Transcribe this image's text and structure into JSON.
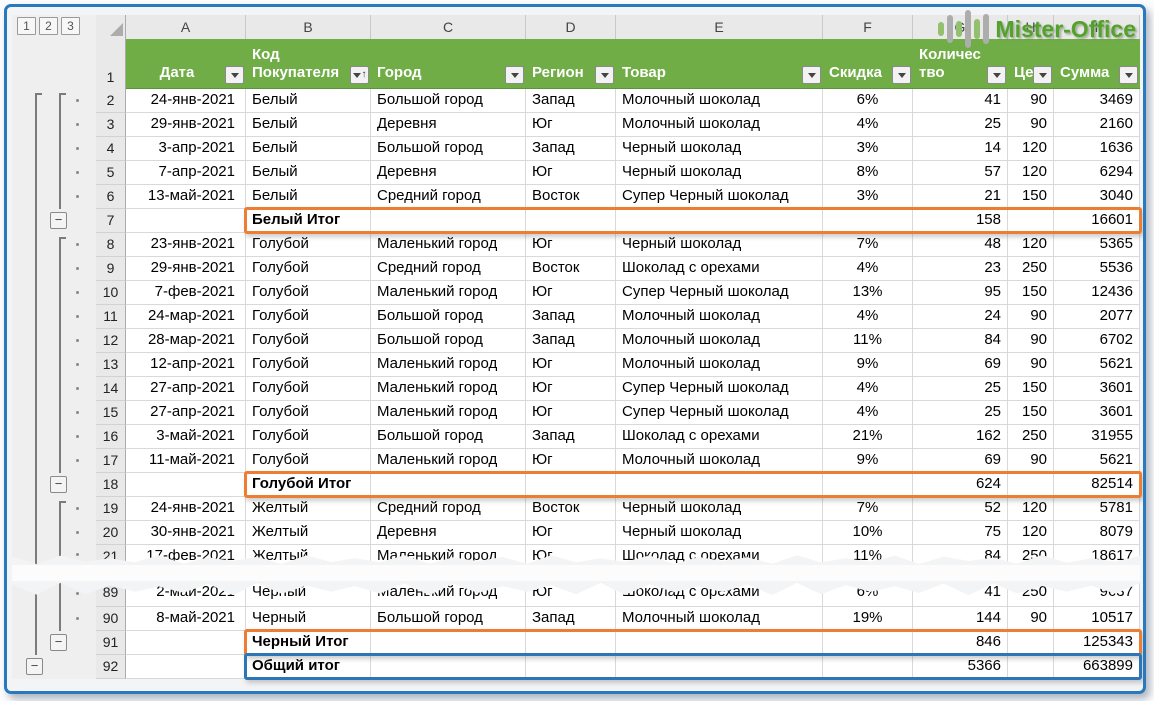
{
  "app": {
    "logo_text": "Mister-Office"
  },
  "outline": {
    "level_buttons": [
      "1",
      "2",
      "3"
    ]
  },
  "header_row_num": "1",
  "colors": {
    "table_header_green": "#70AD47",
    "subtotal_border_orange": "#ED7D31",
    "grandtotal_border_blue": "#2E75B6",
    "frame_border_blue": "#2879BE",
    "logo_green": "#55A02E"
  },
  "columns": {
    "letters": [
      "A",
      "B",
      "C",
      "D",
      "E",
      "F",
      "G",
      "H",
      "I"
    ],
    "headers": [
      {
        "label": "Дата",
        "filter": "dropdown"
      },
      {
        "label": "Код Покупателя",
        "filter": "dropdown-sort-asc"
      },
      {
        "label": "Город",
        "filter": "dropdown"
      },
      {
        "label": "Регион",
        "filter": "dropdown"
      },
      {
        "label": "Товар",
        "filter": "dropdown"
      },
      {
        "label": "Скидка",
        "filter": "dropdown"
      },
      {
        "label": "Количество",
        "filter": "dropdown",
        "wrap": true
      },
      {
        "label": "Цена",
        "filter": "dropdown"
      },
      {
        "label": "Сумма",
        "filter": "dropdown"
      }
    ]
  },
  "rows": [
    {
      "n": "2",
      "date": "24-янв-2021",
      "customer": "Белый",
      "city": "Большой город",
      "region": "Запад",
      "product": "Молочный шоколад",
      "discount": "6%",
      "qty": "41",
      "price": "90",
      "sum": "3469",
      "g": {
        "l1": "corner",
        "l2": "corner",
        "dot": true
      }
    },
    {
      "n": "3",
      "date": "29-янв-2021",
      "customer": "Белый",
      "city": "Деревня",
      "region": "Юг",
      "product": "Молочный шоколад",
      "discount": "4%",
      "qty": "25",
      "price": "90",
      "sum": "2160",
      "g": {
        "l1": "line",
        "l2": "line",
        "dot": true
      }
    },
    {
      "n": "4",
      "date": "3-апр-2021",
      "customer": "Белый",
      "city": "Большой город",
      "region": "Запад",
      "product": "Черный шоколад",
      "discount": "3%",
      "qty": "14",
      "price": "120",
      "sum": "1636",
      "g": {
        "l1": "line",
        "l2": "line",
        "dot": true
      }
    },
    {
      "n": "5",
      "date": "7-апр-2021",
      "customer": "Белый",
      "city": "Деревня",
      "region": "Юг",
      "product": "Черный шоколад",
      "discount": "8%",
      "qty": "57",
      "price": "120",
      "sum": "6294",
      "g": {
        "l1": "line",
        "l2": "line",
        "dot": true
      }
    },
    {
      "n": "6",
      "date": "13-май-2021",
      "customer": "Белый",
      "city": "Средний город",
      "region": "Восток",
      "product": "Супер Черный шоколад",
      "discount": "3%",
      "qty": "21",
      "price": "150",
      "sum": "3040",
      "g": {
        "l1": "line",
        "l2": "line",
        "dot": true
      }
    },
    {
      "n": "7",
      "label": "Белый Итог",
      "qty": "158",
      "sum": "16601",
      "style": "subtotal",
      "g": {
        "l1": "line",
        "l2": "btn"
      }
    },
    {
      "n": "8",
      "date": "23-янв-2021",
      "customer": "Голубой",
      "city": "Маленький город",
      "region": "Юг",
      "product": "Черный шоколад",
      "discount": "7%",
      "qty": "48",
      "price": "120",
      "sum": "5365",
      "g": {
        "l1": "line",
        "l2": "corner",
        "dot": true
      }
    },
    {
      "n": "9",
      "date": "29-янв-2021",
      "customer": "Голубой",
      "city": "Средний город",
      "region": "Восток",
      "product": "Шоколад с орехами",
      "discount": "4%",
      "qty": "23",
      "price": "250",
      "sum": "5536",
      "g": {
        "l1": "line",
        "l2": "line",
        "dot": true
      }
    },
    {
      "n": "10",
      "date": "7-фев-2021",
      "customer": "Голубой",
      "city": "Маленький город",
      "region": "Юг",
      "product": "Супер Черный шоколад",
      "discount": "13%",
      "qty": "95",
      "price": "150",
      "sum": "12436",
      "g": {
        "l1": "line",
        "l2": "line",
        "dot": true
      }
    },
    {
      "n": "11",
      "date": "24-мар-2021",
      "customer": "Голубой",
      "city": "Большой город",
      "region": "Запад",
      "product": "Молочный шоколад",
      "discount": "4%",
      "qty": "24",
      "price": "90",
      "sum": "2077",
      "g": {
        "l1": "line",
        "l2": "line",
        "dot": true
      }
    },
    {
      "n": "12",
      "date": "28-мар-2021",
      "customer": "Голубой",
      "city": "Большой город",
      "region": "Запад",
      "product": "Молочный шоколад",
      "discount": "11%",
      "qty": "84",
      "price": "90",
      "sum": "6702",
      "g": {
        "l1": "line",
        "l2": "line",
        "dot": true
      }
    },
    {
      "n": "13",
      "date": "12-апр-2021",
      "customer": "Голубой",
      "city": "Маленький город",
      "region": "Юг",
      "product": "Молочный шоколад",
      "discount": "9%",
      "qty": "69",
      "price": "90",
      "sum": "5621",
      "g": {
        "l1": "line",
        "l2": "line",
        "dot": true
      }
    },
    {
      "n": "14",
      "date": "27-апр-2021",
      "customer": "Голубой",
      "city": "Маленький город",
      "region": "Юг",
      "product": "Супер Черный шоколад",
      "discount": "4%",
      "qty": "25",
      "price": "150",
      "sum": "3601",
      "g": {
        "l1": "line",
        "l2": "line",
        "dot": true
      }
    },
    {
      "n": "15",
      "date": "27-апр-2021",
      "customer": "Голубой",
      "city": "Маленький город",
      "region": "Юг",
      "product": "Супер Черный шоколад",
      "discount": "4%",
      "qty": "25",
      "price": "150",
      "sum": "3601",
      "g": {
        "l1": "line",
        "l2": "line",
        "dot": true
      }
    },
    {
      "n": "16",
      "date": "3-май-2021",
      "customer": "Голубой",
      "city": "Большой город",
      "region": "Запад",
      "product": "Шоколад с орехами",
      "discount": "21%",
      "qty": "162",
      "price": "250",
      "sum": "31955",
      "g": {
        "l1": "line",
        "l2": "line",
        "dot": true
      }
    },
    {
      "n": "17",
      "date": "11-май-2021",
      "customer": "Голубой",
      "city": "Маленький город",
      "region": "Юг",
      "product": "Молочный шоколад",
      "discount": "9%",
      "qty": "69",
      "price": "90",
      "sum": "5621",
      "g": {
        "l1": "line",
        "l2": "line",
        "dot": true
      }
    },
    {
      "n": "18",
      "label": "Голубой Итог",
      "qty": "624",
      "sum": "82514",
      "style": "subtotal",
      "g": {
        "l1": "line",
        "l2": "btn"
      }
    },
    {
      "n": "19",
      "date": "24-янв-2021",
      "customer": "Желтый",
      "city": "Средний город",
      "region": "Восток",
      "product": "Черный шоколад",
      "discount": "7%",
      "qty": "52",
      "price": "120",
      "sum": "5781",
      "g": {
        "l1": "line",
        "l2": "corner",
        "dot": true
      }
    },
    {
      "n": "20",
      "date": "30-янв-2021",
      "customer": "Желтый",
      "city": "Деревня",
      "region": "Юг",
      "product": "Черный шоколад",
      "discount": "10%",
      "qty": "75",
      "price": "120",
      "sum": "8079",
      "g": {
        "l1": "line",
        "l2": "line",
        "dot": true
      }
    },
    {
      "n": "21",
      "date": "17-фев-2021",
      "customer": "Желтый",
      "city": "Маленький город",
      "region": "Юг",
      "product": "Шоколад с орехами",
      "discount": "11%",
      "qty": "84",
      "price": "250",
      "sum": "18617",
      "torn": "bottom",
      "g": {
        "l1": "line",
        "l2": "line",
        "dot": true
      }
    },
    {
      "n": "89",
      "date": "2-май-2021",
      "customer": "Черный",
      "city": "Маленький город",
      "region": "Юг",
      "product": "Шоколад с орехами",
      "discount": "6%",
      "qty": "41",
      "price": "250",
      "sum": "9637",
      "torn": "top",
      "g": {
        "l1": "line",
        "l2": "line",
        "dot": true
      }
    },
    {
      "n": "90",
      "date": "8-май-2021",
      "customer": "Черный",
      "city": "Большой город",
      "region": "Запад",
      "product": "Молочный шоколад",
      "discount": "19%",
      "qty": "144",
      "price": "90",
      "sum": "10517",
      "g": {
        "l1": "line",
        "l2": "line",
        "dot": true
      }
    },
    {
      "n": "91",
      "label": "Черный Итог",
      "qty": "846",
      "sum": "125343",
      "style": "subtotal",
      "g": {
        "l1": "line",
        "l2": "btn"
      }
    },
    {
      "n": "92",
      "label": "Общий итог",
      "qty": "5366",
      "sum": "663899",
      "style": "grandtotal",
      "g": {
        "l1": "btn",
        "l2": "none"
      }
    }
  ]
}
